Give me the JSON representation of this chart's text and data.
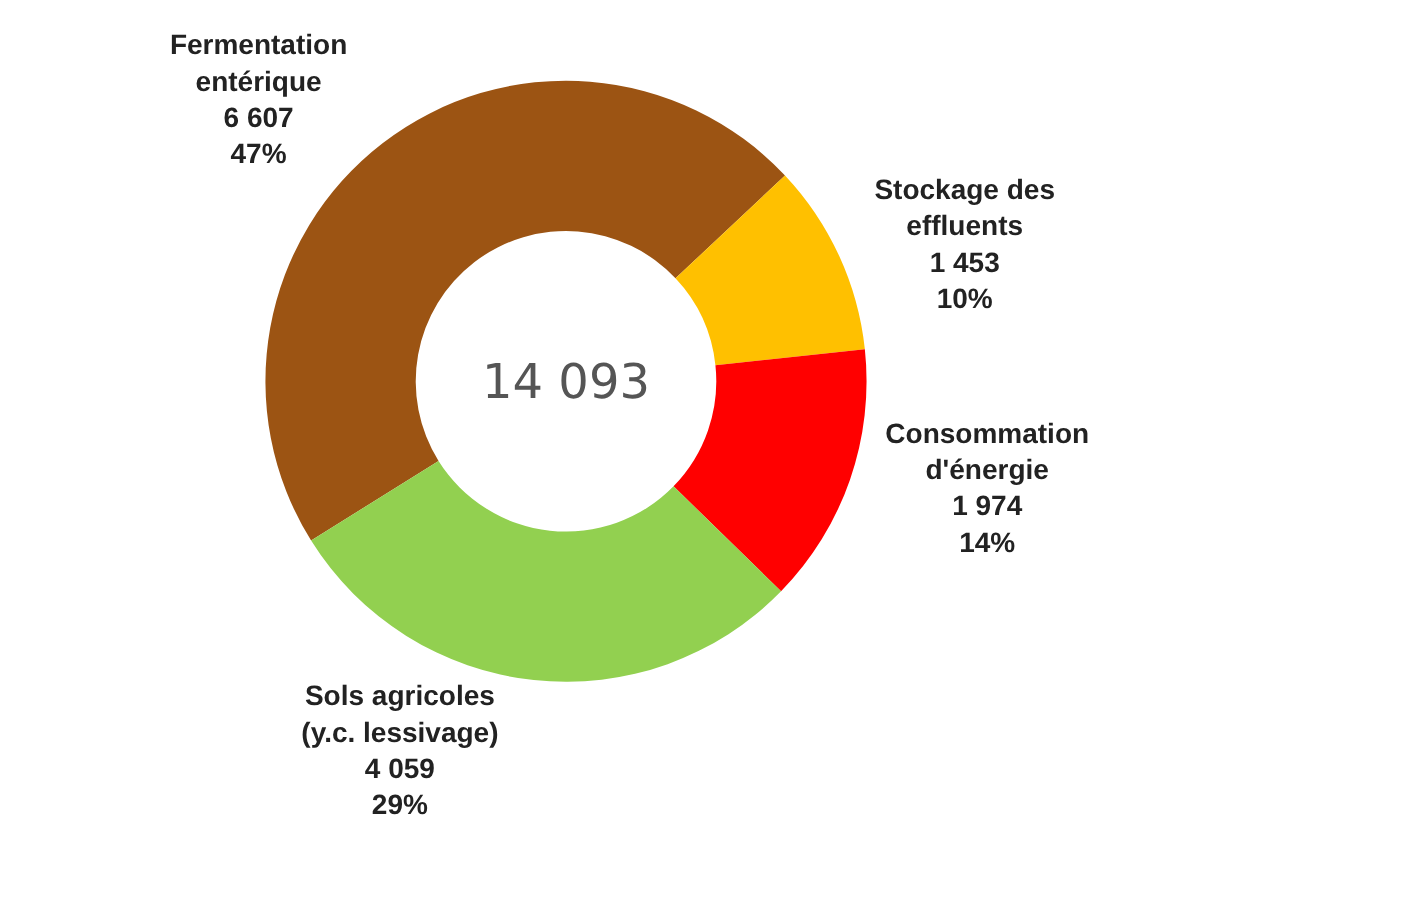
{
  "chart_data": {
    "type": "donut",
    "categories": [
      "Fermentation\nentérique",
      "Stockage des\neffluents",
      "Consommation\nd'énergie",
      "Sols agricoles\n(y.c. lessivage)"
    ],
    "values": [
      6607,
      1453,
      1974,
      4059
    ],
    "value_labels": [
      "6 607\n47%",
      "1 453\n10%",
      "1 974\n14%",
      "4 059\n29%"
    ],
    "colors": [
      "#9c5413",
      "#ffc000",
      "#ff0000",
      "#92d050"
    ],
    "annotations": [
      "14 093"
    ],
    "legend": false
  }
}
